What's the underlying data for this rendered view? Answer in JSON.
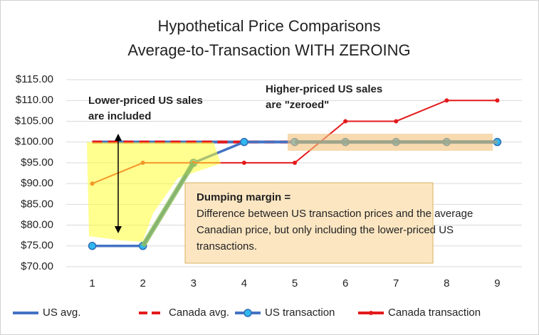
{
  "chart_data": {
    "type": "line",
    "title": "Hypothetical Price Comparisons",
    "subtitle": "Average-to-Transaction  WITH ZEROING",
    "categories": [
      "1",
      "2",
      "3",
      "4",
      "5",
      "6",
      "7",
      "8",
      "9"
    ],
    "series": [
      {
        "name": "US avg.",
        "color": "#4472c4",
        "values": [
          100,
          100,
          100,
          100,
          100,
          100,
          100,
          100,
          100
        ]
      },
      {
        "name": "Canada avg.",
        "color": "#e31a1c",
        "dashed": true,
        "values": [
          100,
          100,
          100,
          100,
          100,
          100,
          100,
          100,
          100
        ]
      },
      {
        "name": "US transaction",
        "color": "#4472c4",
        "marker": "circle",
        "values": [
          75,
          75,
          95,
          100,
          100,
          100,
          100,
          100,
          100
        ]
      },
      {
        "name": "Canada transaction",
        "color": "#e31a1c",
        "marker": "dot",
        "values": [
          90,
          95,
          95,
          95,
          95,
          105,
          105,
          110,
          110
        ]
      }
    ],
    "ylim": [
      70,
      115
    ],
    "yticks": [
      {
        "value": 70,
        "label": "$70.00"
      },
      {
        "value": 75,
        "label": "$75.00"
      },
      {
        "value": 80,
        "label": "$80.00"
      },
      {
        "value": 85,
        "label": "$85.00"
      },
      {
        "value": 90,
        "label": "$90.00"
      },
      {
        "value": 95,
        "label": "$95.00"
      },
      {
        "value": 100,
        "label": "$100.00"
      },
      {
        "value": 105,
        "label": "$105.00"
      },
      {
        "value": 110,
        "label": "$110.00"
      },
      {
        "value": 115,
        "label": "$115.00"
      }
    ],
    "grid": true,
    "legend": "bottom",
    "annotations": [
      {
        "lines": [
          "Lower-priced US sales",
          "are included"
        ]
      },
      {
        "lines": [
          "Higher-priced US sales",
          "are \"zeroed\""
        ]
      },
      {
        "heading": "Dumping margin =",
        "lines": [
          "Difference between US transaction prices and the average",
          "Canadian price, but only including the lower-priced US",
          "transactions."
        ]
      }
    ]
  }
}
